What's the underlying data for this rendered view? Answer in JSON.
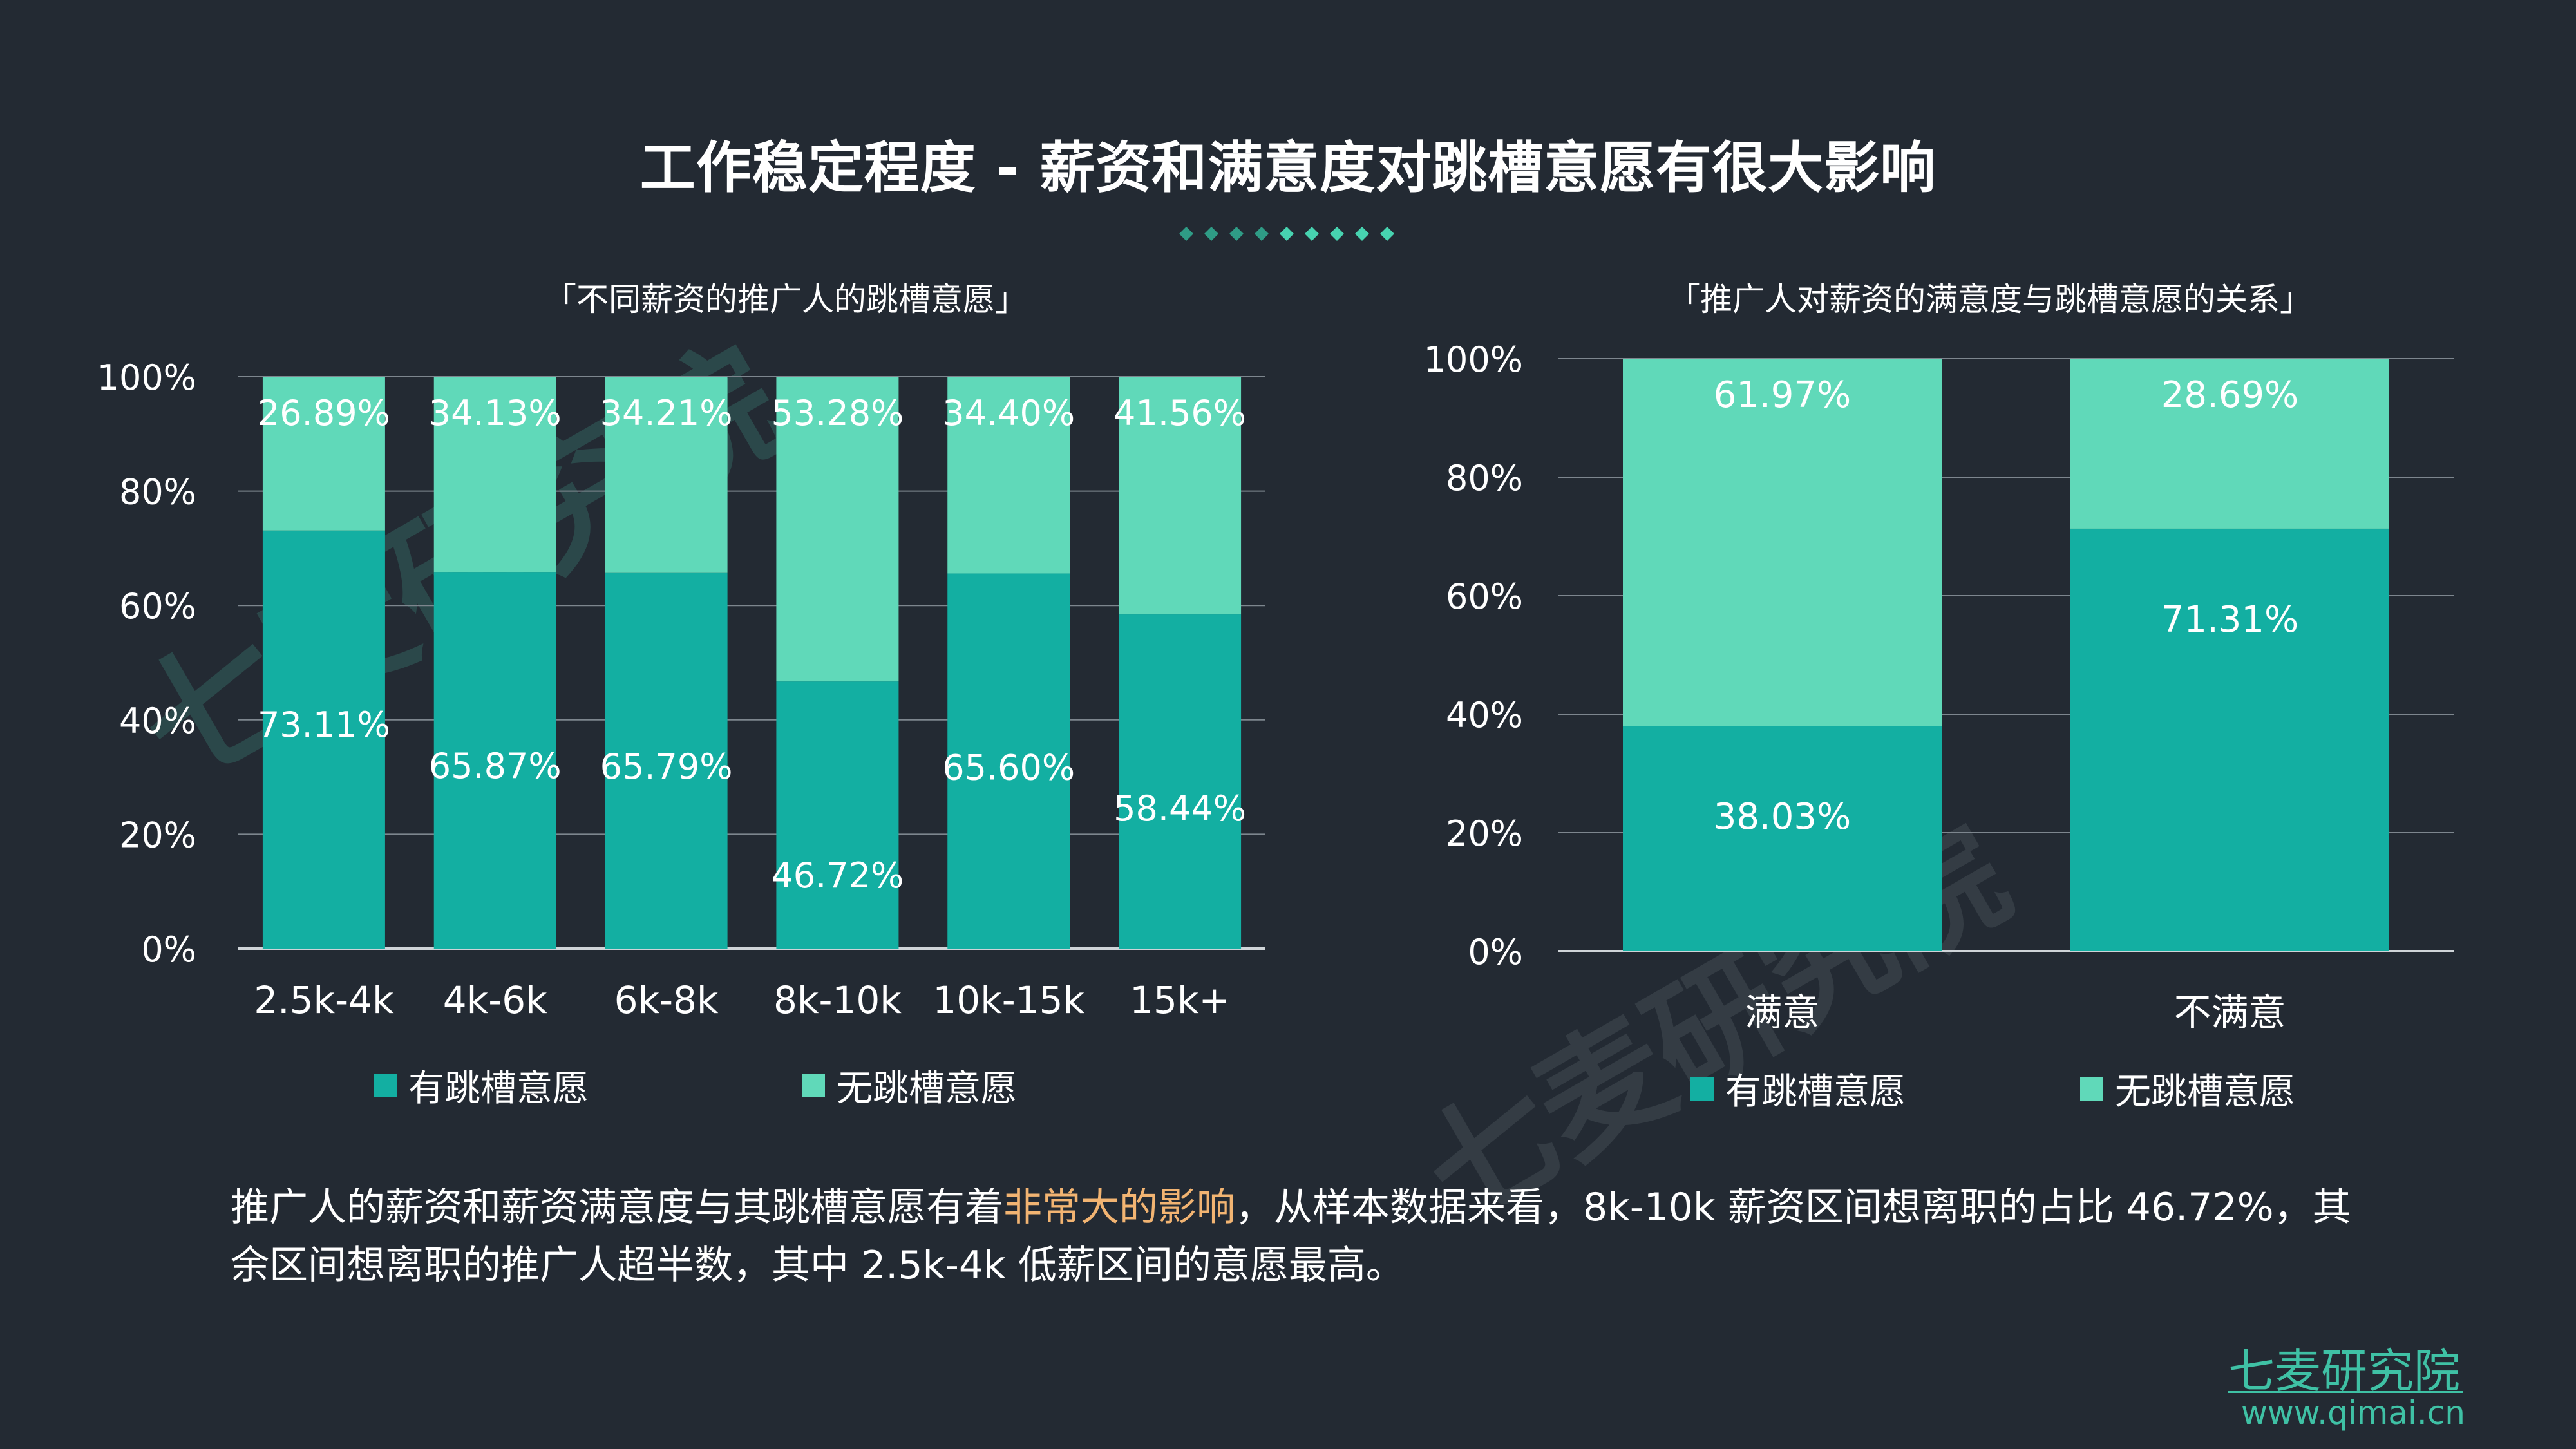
{
  "title": "工作稳定程度 - 薪资和满意度对跳槽意愿有很大影响",
  "colors": {
    "background": "#232a33",
    "series_yes": "#13afa2",
    "series_no": "#60d9b9",
    "highlight": "#f2b472",
    "brand": "#3fc1a5"
  },
  "watermark": "七麦研究院",
  "summary": {
    "part1": "推广人的薪资和薪资满意度与其跳槽意愿有着",
    "highlight": "非常大的影响",
    "part2": "，从样本数据来看，8k-10k 薪资区间想离职的占比 46.72%，其余区间想离职的推广人超半数，其中 2.5k-4k 低薪区间的意愿最高。"
  },
  "brand": {
    "name": "七麦研究院",
    "url": "www.qimai.cn"
  },
  "chart_data": [
    {
      "type": "bar",
      "stacked": true,
      "title": "「不同薪资的推广人的跳槽意愿」",
      "categories": [
        "2.5k-4k",
        "4k-6k",
        "6k-8k",
        "8k-10k",
        "10k-15k",
        "15k+"
      ],
      "series": [
        {
          "name": "有跳槽意愿",
          "values": [
            73.11,
            65.87,
            65.79,
            46.72,
            65.6,
            58.44
          ],
          "labels": [
            "73.11%",
            "65.87%",
            "65.79%",
            "46.72%",
            "65.60%",
            "58.44%"
          ]
        },
        {
          "name": "无跳槽意愿",
          "values": [
            26.89,
            34.13,
            34.21,
            53.28,
            34.4,
            41.56
          ],
          "labels": [
            "26.89%",
            "34.13%",
            "34.21%",
            "53.28%",
            "34.40%",
            "41.56%"
          ]
        }
      ],
      "yticks": [
        "0%",
        "20%",
        "40%",
        "60%",
        "80%",
        "100%"
      ],
      "ylim": [
        0,
        100
      ],
      "grid": true,
      "legend": "bottom"
    },
    {
      "type": "bar",
      "stacked": true,
      "title": "「推广人对薪资的满意度与跳槽意愿的关系」",
      "categories": [
        "满意",
        "不满意"
      ],
      "series": [
        {
          "name": "有跳槽意愿",
          "values": [
            38.03,
            71.31
          ],
          "labels": [
            "38.03%",
            "71.31%"
          ]
        },
        {
          "name": "无跳槽意愿",
          "values": [
            61.97,
            28.69
          ],
          "labels": [
            "61.97%",
            "28.69%"
          ]
        }
      ],
      "yticks": [
        "0%",
        "20%",
        "40%",
        "60%",
        "80%",
        "100%"
      ],
      "ylim": [
        0,
        100
      ],
      "grid": true,
      "legend": "bottom"
    }
  ]
}
